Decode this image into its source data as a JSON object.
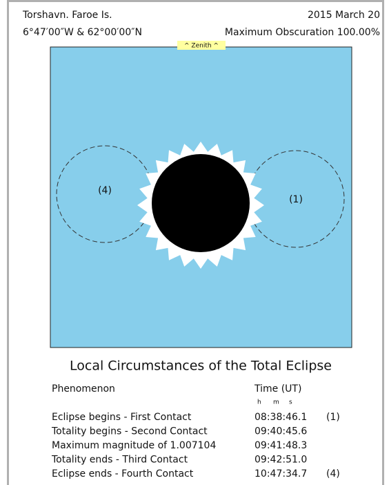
{
  "header": {
    "location": "Torshavn. Faroe Is.",
    "date": "2015 March 20",
    "coordinates": "6°47′00″W & 62°00′00″N",
    "obscuration": "Maximum Obscuration 100.00%"
  },
  "diagram": {
    "zenith_label": "^ Zenith ^",
    "contact_labels": [
      "(4)",
      "(1)"
    ]
  },
  "circumstances": {
    "title": "Local Circumstances of the Total Eclipse",
    "columns": [
      "Phenomenon",
      "Time (UT)"
    ],
    "units": [
      "h",
      "m",
      "s"
    ],
    "rows": [
      [
        "Eclipse begins - First Contact",
        "08:38:46.1",
        "(1)"
      ],
      [
        "Totality begins - Second Contact",
        "09:40:45.6",
        null
      ],
      [
        "Maximum magnitude of 1.007104",
        "09:41:48.3",
        null
      ],
      [
        "Totality ends - Third Contact",
        "09:42:51.0",
        null
      ],
      [
        "Eclipse ends - Fourth Contact",
        "10:47:34.7",
        "(4)"
      ]
    ]
  }
}
